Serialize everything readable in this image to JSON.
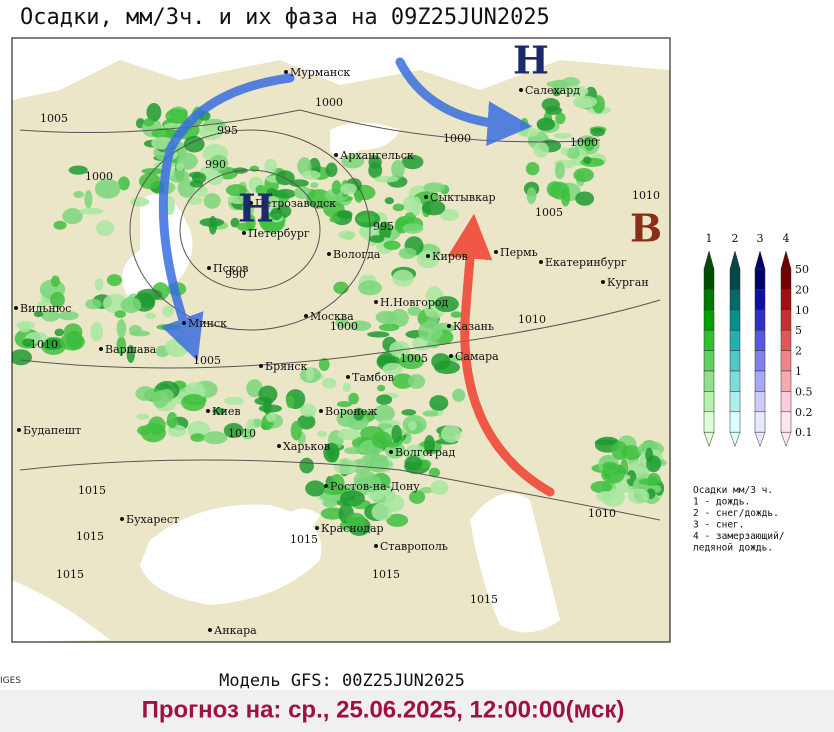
{
  "header": {
    "title": "Осадки, мм/3ч. и их фаза на 09Z25JUN2025"
  },
  "map": {
    "pressure_centers": [
      "Н",
      "Н",
      "В"
    ],
    "cities": [
      "Мурманск",
      "Салехард",
      "Архангельск",
      "Сыктывкар",
      "Петрозаводск",
      "Петербург",
      "Псков",
      "Вологда",
      "Киров",
      "Пермь",
      "Екатеринбург",
      "Курган",
      "Вильнюс",
      "Минск",
      "Москва",
      "Н.Новгород",
      "Казань",
      "Варшава",
      "Брянск",
      "Самара",
      "Тамбов",
      "Киев",
      "Воронеж",
      "Будапешт",
      "Харьков",
      "Волгоград",
      "Ростов-на-Дону",
      "Бухарест",
      "Краснодар",
      "Ставрополь",
      "Анкара"
    ],
    "isobars": [
      1005,
      995,
      990,
      1000,
      1000,
      1000,
      1000,
      1010,
      1005,
      995,
      990,
      1010,
      1000,
      1005,
      1005,
      1010,
      1010,
      1015,
      1015,
      1015,
      1015,
      1015,
      1015,
      1010
    ]
  },
  "legend": {
    "columns": [
      "1",
      "2",
      "3",
      "4"
    ],
    "levels": [
      "50",
      "20",
      "10",
      "5",
      "2",
      "1",
      "0.5",
      "0.2",
      "0.1"
    ],
    "notes": [
      "Осадки мм/3 ч.",
      "1 - дождь.",
      "2 - снег/дождь.",
      "3 - снег.",
      "4 - замерзающий/",
      "ледяной дождь."
    ]
  },
  "footer": {
    "model": "Модель GFS: 00Z25JUN2025",
    "source": "IGES",
    "forecast": "Прогноз на: ср., 25.06.2025, 12:00:00(мск)"
  }
}
